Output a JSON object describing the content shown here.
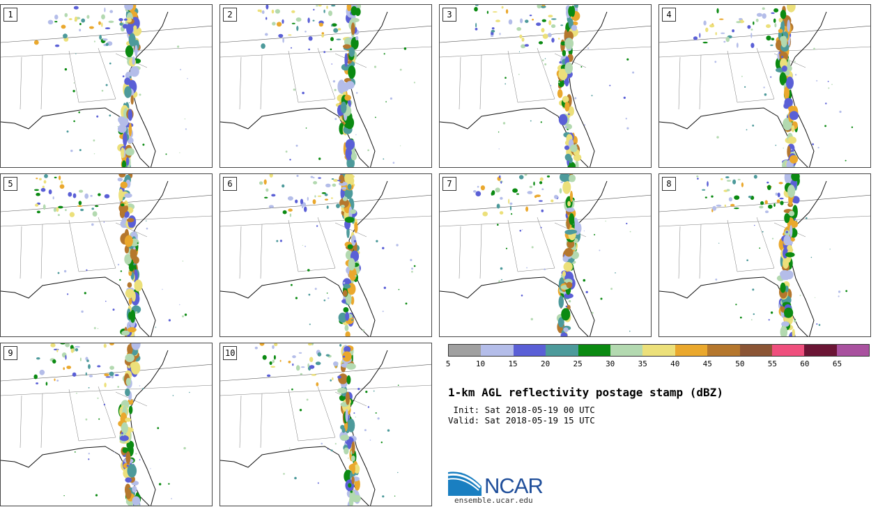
{
  "panels": [
    {
      "label": "1"
    },
    {
      "label": "2"
    },
    {
      "label": "3"
    },
    {
      "label": "4"
    },
    {
      "label": "5"
    },
    {
      "label": "6"
    },
    {
      "label": "7"
    },
    {
      "label": "8"
    },
    {
      "label": "9"
    },
    {
      "label": "10"
    }
  ],
  "colorbar": {
    "colors": [
      "#a0a0a0",
      "#b4bde9",
      "#5a5fd6",
      "#4d9a9b",
      "#0b8a12",
      "#b3d9b0",
      "#ece07a",
      "#eaa82d",
      "#b5772d",
      "#8b5535",
      "#ef4f7d",
      "#6b1535",
      "#a9519f"
    ],
    "ticks": [
      "5",
      "10",
      "15",
      "20",
      "25",
      "30",
      "35",
      "40",
      "45",
      "50",
      "55",
      "60",
      "65"
    ]
  },
  "title": "1-km AGL reflectivity postage stamp (dBZ)",
  "init_line": " Init: Sat 2018-05-19 00 UTC",
  "valid_line": "Valid: Sat 2018-05-19 15 UTC",
  "logo": {
    "text": "NCAR",
    "url": "ensemble.ucar.edu"
  }
}
